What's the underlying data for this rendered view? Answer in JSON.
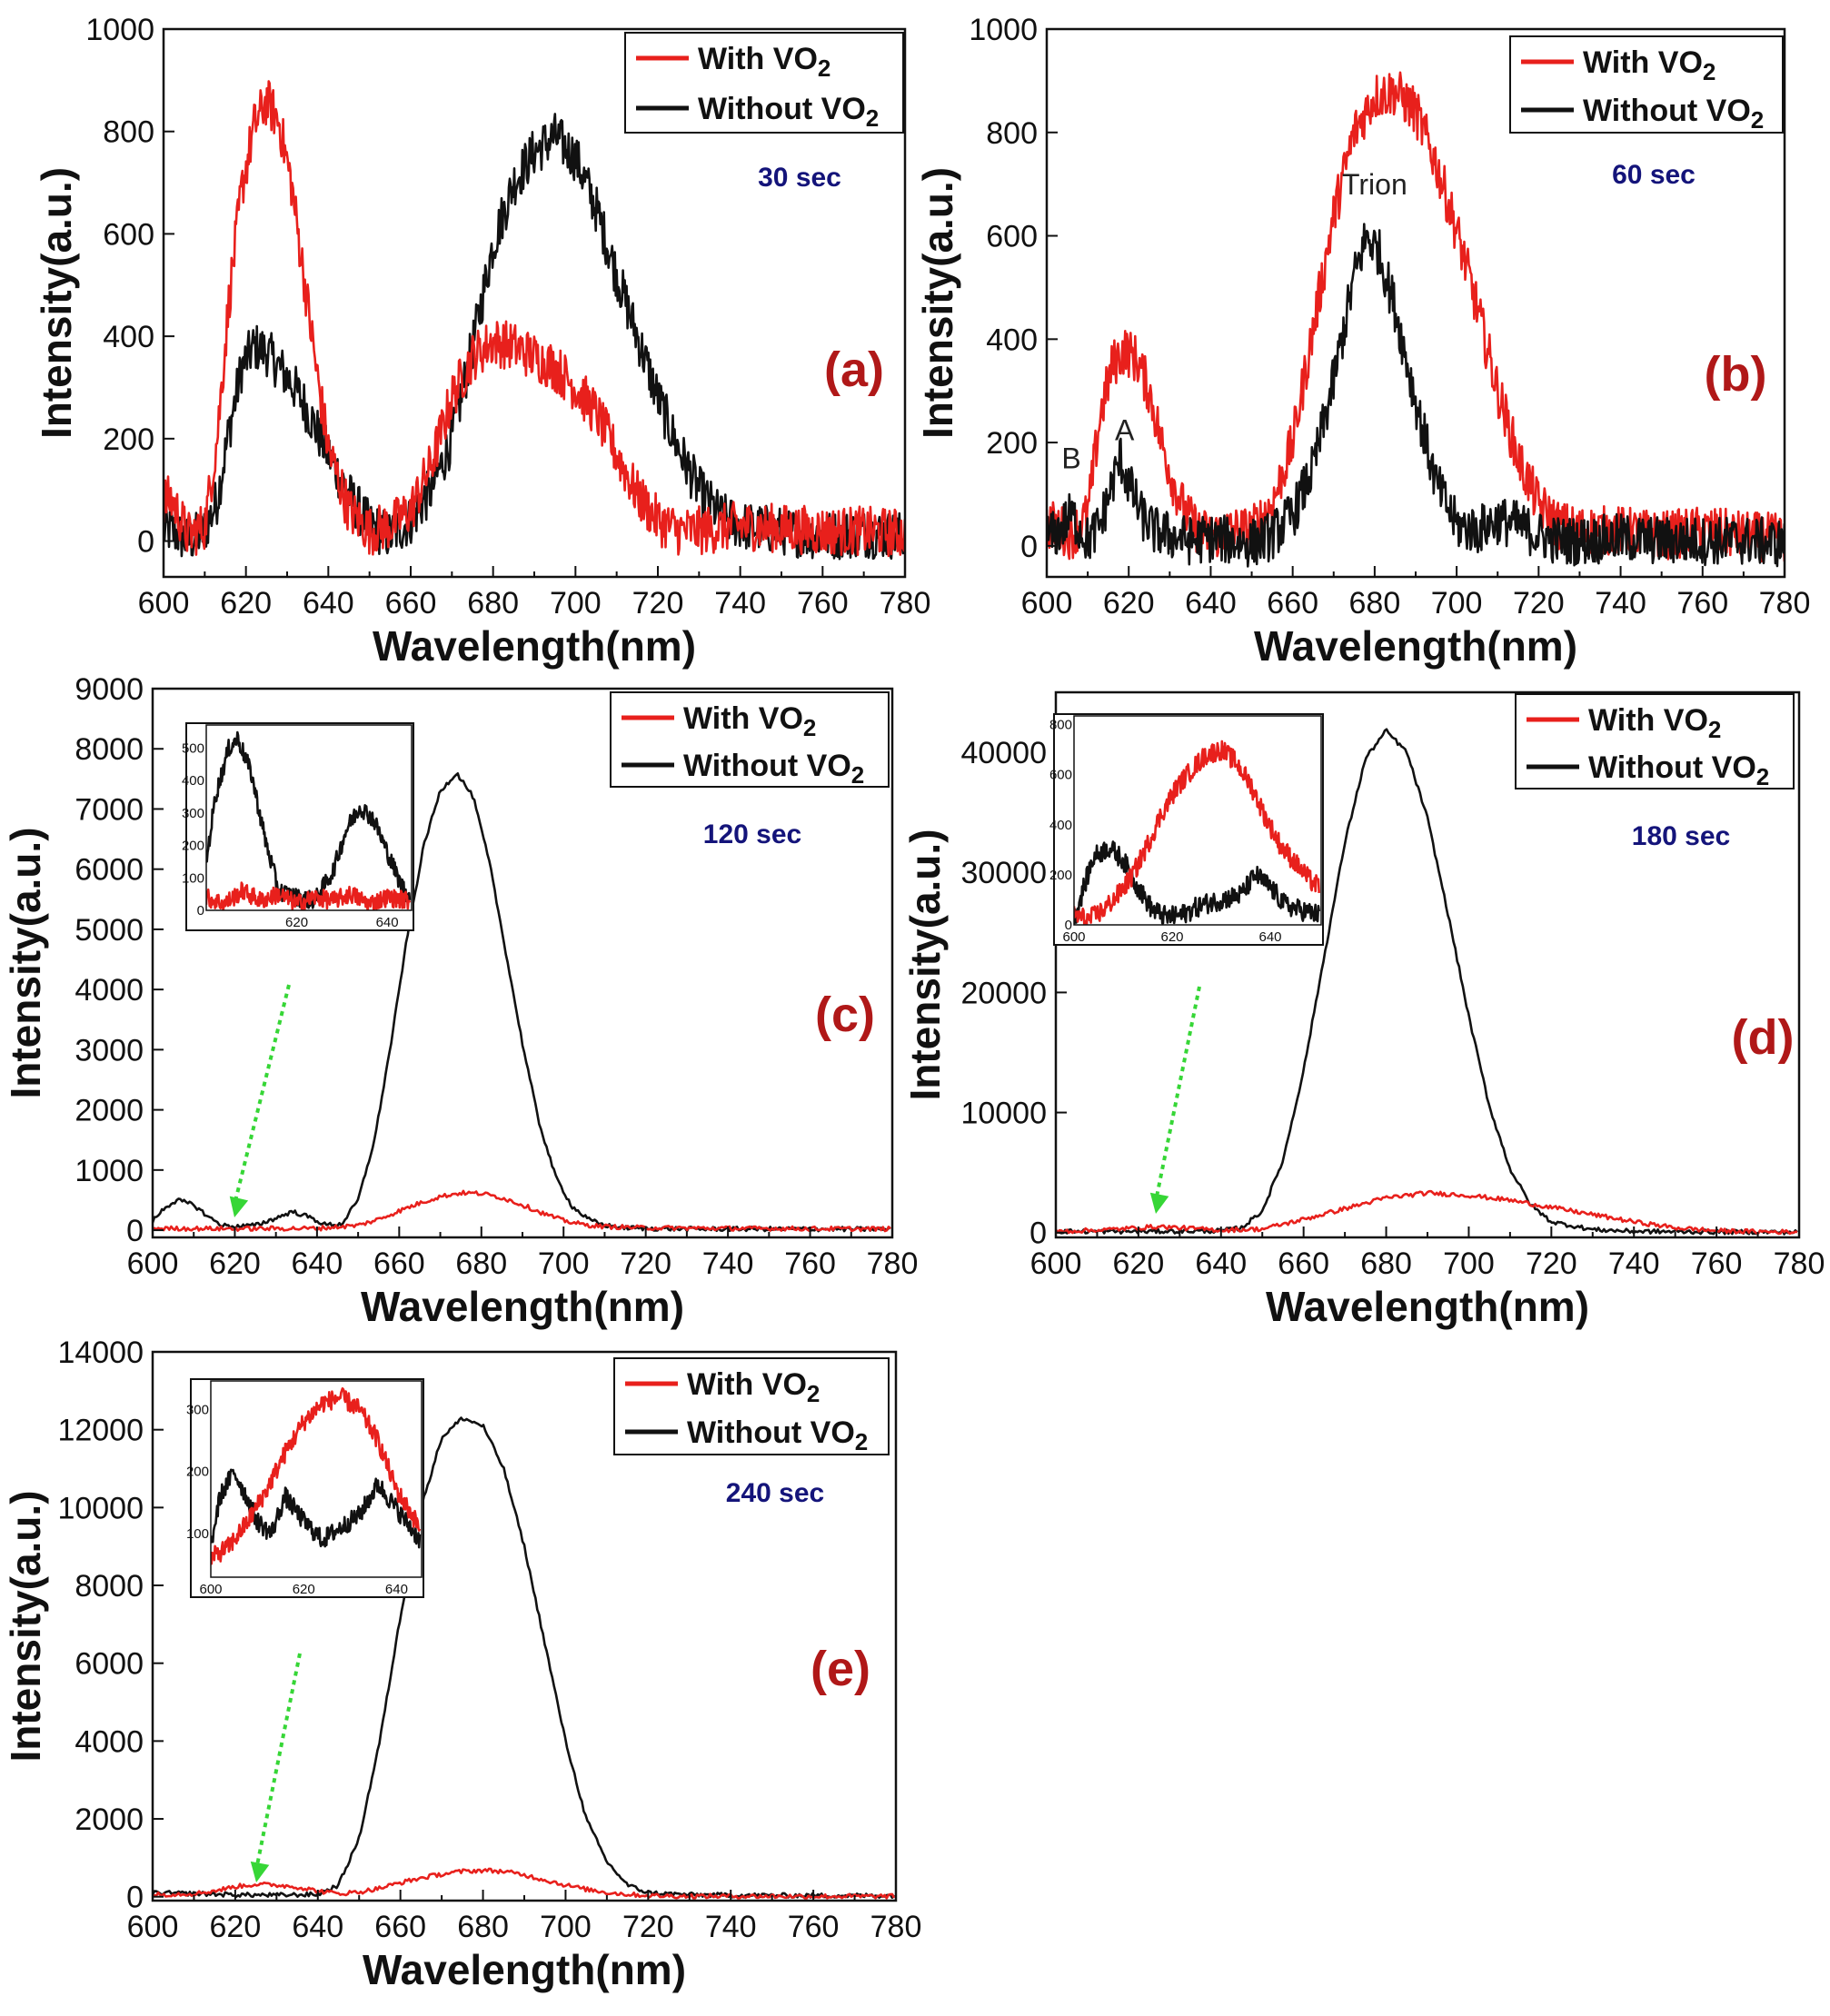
{
  "colors": {
    "with": "#e8201c",
    "without": "#111111",
    "arrow": "#36d636",
    "time": "#14147a",
    "panel_label": "#b01818"
  },
  "chart_data": [
    {
      "type": "line",
      "panel": "(a)",
      "time_label": "30 sec",
      "xlabel": "Wavelength(nm)",
      "ylabel": "Intensity(a.u.)",
      "xlim": [
        600,
        780
      ],
      "ylim": [
        -70,
        1000
      ],
      "xticks": [
        600,
        620,
        640,
        660,
        680,
        700,
        720,
        740,
        760,
        780
      ],
      "yticks": [
        0,
        200,
        400,
        600,
        800,
        1000
      ],
      "legend_placement": "top-right",
      "series": [
        {
          "name": "With VO2",
          "color": "#e8201c",
          "x": [
            602,
            606,
            610,
            613,
            616,
            619,
            622,
            625,
            628,
            631,
            634,
            637,
            640,
            645,
            650,
            655,
            660,
            665,
            670,
            675,
            680,
            685,
            690,
            695,
            700,
            705,
            710,
            715,
            720,
            725,
            730,
            740,
            750,
            760,
            770,
            780
          ],
          "y": [
            80,
            10,
            30,
            200,
            480,
            690,
            810,
            860,
            820,
            700,
            520,
            340,
            180,
            60,
            20,
            30,
            60,
            150,
            280,
            360,
            390,
            380,
            360,
            340,
            300,
            250,
            170,
            90,
            40,
            20,
            20,
            30,
            25,
            20,
            20,
            15
          ]
        },
        {
          "name": "Without VO2",
          "color": "#111111",
          "x": [
            602,
            606,
            610,
            613,
            616,
            619,
            622,
            625,
            628,
            631,
            634,
            637,
            640,
            645,
            650,
            655,
            660,
            665,
            670,
            675,
            680,
            685,
            690,
            695,
            700,
            705,
            710,
            715,
            720,
            725,
            730,
            735,
            740,
            750,
            760,
            770,
            780
          ],
          "y": [
            20,
            0,
            20,
            80,
            220,
            340,
            380,
            370,
            340,
            310,
            270,
            220,
            170,
            90,
            30,
            10,
            40,
            100,
            200,
            380,
            580,
            700,
            760,
            790,
            750,
            650,
            520,
            400,
            280,
            180,
            100,
            50,
            30,
            20,
            10,
            15,
            10
          ]
        }
      ]
    },
    {
      "type": "line",
      "panel": "(b)",
      "time_label": "60 sec",
      "xlabel": "Wavelength(nm)",
      "ylabel": "Intensity(a.u.)",
      "xlim": [
        600,
        780
      ],
      "ylim": [
        -60,
        1000
      ],
      "xticks": [
        600,
        620,
        640,
        660,
        680,
        700,
        720,
        740,
        760,
        780
      ],
      "yticks": [
        0,
        200,
        400,
        600,
        800,
        1000
      ],
      "legend_placement": "top-right",
      "annotations": [
        "B",
        "A",
        "Trion"
      ],
      "series": [
        {
          "name": "With VO2",
          "color": "#e8201c",
          "x": [
            602,
            606,
            610,
            613,
            616,
            619,
            622,
            625,
            628,
            631,
            634,
            637,
            640,
            645,
            650,
            655,
            660,
            665,
            670,
            675,
            680,
            685,
            690,
            695,
            700,
            705,
            710,
            715,
            720,
            725,
            730,
            740,
            750,
            760,
            770,
            780
          ],
          "y": [
            40,
            20,
            60,
            250,
            350,
            380,
            360,
            300,
            200,
            120,
            60,
            30,
            20,
            30,
            30,
            80,
            200,
            420,
            640,
            800,
            870,
            880,
            840,
            740,
            610,
            460,
            300,
            170,
            80,
            40,
            30,
            30,
            20,
            30,
            20,
            15
          ]
        },
        {
          "name": "Without VO2",
          "color": "#111111",
          "x": [
            602,
            606,
            610,
            613,
            616,
            618,
            620,
            623,
            626,
            630,
            635,
            640,
            645,
            650,
            655,
            660,
            665,
            670,
            675,
            678,
            681,
            685,
            690,
            695,
            700,
            705,
            710,
            715,
            720,
            725,
            730,
            740,
            750,
            760,
            770,
            780
          ],
          "y": [
            20,
            60,
            10,
            40,
            120,
            170,
            120,
            60,
            30,
            20,
            10,
            15,
            10,
            5,
            20,
            60,
            150,
            320,
            520,
            600,
            570,
            460,
            280,
            120,
            40,
            30,
            50,
            40,
            20,
            10,
            10,
            15,
            10,
            10,
            10,
            5
          ]
        }
      ]
    },
    {
      "type": "line",
      "panel": "(c)",
      "time_label": "120 sec",
      "xlabel": "Wavelength(nm)",
      "ylabel": "Intensity(a.u.)",
      "xlim": [
        600,
        780
      ],
      "ylim": [
        -120,
        9000
      ],
      "xticks": [
        600,
        620,
        640,
        660,
        680,
        700,
        720,
        740,
        760,
        780
      ],
      "yticks": [
        0,
        1000,
        2000,
        3000,
        4000,
        5000,
        6000,
        7000,
        8000,
        9000
      ],
      "legend_placement": "top-right",
      "series": [
        {
          "name": "With VO2",
          "color": "#e8201c",
          "x": [
            600,
            620,
            640,
            650,
            655,
            660,
            665,
            670,
            675,
            680,
            685,
            690,
            695,
            700,
            705,
            710,
            720,
            740,
            760,
            780
          ],
          "y": [
            30,
            25,
            30,
            80,
            180,
            320,
            450,
            560,
            620,
            610,
            540,
            420,
            280,
            160,
            90,
            60,
            40,
            30,
            25,
            20
          ]
        },
        {
          "name": "Without VO2",
          "color": "#111111",
          "x": [
            600,
            603,
            606,
            610,
            614,
            617,
            620,
            625,
            630,
            634,
            638,
            642,
            646,
            650,
            654,
            658,
            662,
            666,
            670,
            674,
            678,
            682,
            686,
            690,
            694,
            698,
            702,
            706,
            710,
            715,
            720,
            730,
            740,
            760,
            780
          ],
          "y": [
            150,
            380,
            500,
            420,
            200,
            80,
            60,
            80,
            200,
            310,
            220,
            90,
            100,
            500,
            1500,
            3100,
            4900,
            6400,
            7300,
            7600,
            7200,
            6100,
            4600,
            3100,
            1800,
            900,
            400,
            180,
            80,
            40,
            30,
            20,
            20,
            20,
            15
          ]
        }
      ],
      "inset": {
        "xticks": [
          620,
          640
        ],
        "yticks": [
          0,
          100,
          200,
          300,
          400,
          500
        ],
        "xlim": [
          600,
          645
        ],
        "ylim": [
          0,
          560
        ],
        "series": [
          {
            "name": "With VO2",
            "color": "#e8201c",
            "x": [
              600,
              604,
              608,
              612,
              616,
              620,
              624,
              628,
              632,
              636,
              640,
              645
            ],
            "y": [
              40,
              20,
              60,
              30,
              50,
              20,
              40,
              30,
              50,
              20,
              40,
              30
            ]
          },
          {
            "name": "Without VO2",
            "color": "#111111",
            "x": [
              600,
              602,
              605,
              607,
              610,
              613,
              616,
              620,
              624,
              628,
              631,
              634,
              637,
              640,
              643,
              645
            ],
            "y": [
              150,
              350,
              500,
              530,
              420,
              220,
              60,
              40,
              30,
              120,
              250,
              320,
              280,
              180,
              80,
              40
            ]
          }
        ]
      }
    },
    {
      "type": "line",
      "panel": "(d)",
      "time_label": "180 sec",
      "xlabel": "Wavelength(nm)",
      "ylabel": "Intensity(a.u.)",
      "xlim": [
        600,
        780
      ],
      "ylim": [
        -400,
        45000
      ],
      "xticks": [
        600,
        620,
        640,
        660,
        680,
        700,
        720,
        740,
        760,
        780
      ],
      "yticks": [
        0,
        10000,
        20000,
        30000,
        40000
      ],
      "legend_placement": "top-right",
      "series": [
        {
          "name": "With VO2",
          "color": "#e8201c",
          "x": [
            600,
            610,
            620,
            625,
            630,
            640,
            650,
            660,
            670,
            680,
            690,
            700,
            710,
            720,
            730,
            740,
            750,
            760,
            770,
            780
          ],
          "y": [
            100,
            200,
            400,
            500,
            400,
            200,
            300,
            1100,
            2000,
            2900,
            3300,
            3100,
            2700,
            2100,
            1500,
            900,
            400,
            150,
            80,
            50
          ]
        },
        {
          "name": "Without VO2",
          "color": "#111111",
          "x": [
            600,
            620,
            640,
            645,
            650,
            655,
            660,
            665,
            670,
            675,
            680,
            685,
            690,
            695,
            700,
            705,
            710,
            715,
            720,
            730,
            740,
            760,
            780
          ],
          "y": [
            100,
            100,
            150,
            400,
            1800,
            6000,
            13500,
            23000,
            32500,
            39500,
            41800,
            40000,
            34500,
            26500,
            18000,
            10500,
            5300,
            2300,
            900,
            250,
            100,
            60,
            50
          ]
        }
      ],
      "inset": {
        "xticks": [
          600,
          620,
          640
        ],
        "yticks": [
          0,
          200,
          400,
          600,
          800
        ],
        "xlim": [
          600,
          650
        ],
        "ylim": [
          0,
          820
        ],
        "series": [
          {
            "name": "With VO2",
            "color": "#e8201c",
            "x": [
              600,
              603,
              606,
              609,
              612,
              615,
              618,
              621,
              624,
              627,
              630,
              633,
              636,
              639,
              642,
              645,
              648,
              650
            ],
            "y": [
              40,
              20,
              60,
              120,
              200,
              320,
              450,
              550,
              620,
              680,
              700,
              650,
              560,
              430,
              320,
              250,
              180,
              150
            ]
          },
          {
            "name": "Without VO2",
            "color": "#111111",
            "x": [
              600,
              602,
              604,
              607,
              610,
              613,
              616,
              619,
              622,
              626,
              630,
              634,
              637,
              640,
              643,
              646,
              650
            ],
            "y": [
              20,
              150,
              270,
              310,
              260,
              150,
              60,
              30,
              40,
              80,
              100,
              120,
              200,
              150,
              80,
              60,
              40
            ]
          }
        ]
      }
    },
    {
      "type": "line",
      "panel": "(e)",
      "time_label": "240 sec",
      "xlabel": "Wavelength(nm)",
      "ylabel": "Intensity(a.u.)",
      "xlim": [
        600,
        780
      ],
      "ylim": [
        -100,
        14000
      ],
      "xticks": [
        600,
        620,
        640,
        660,
        680,
        700,
        720,
        740,
        760,
        780
      ],
      "yticks": [
        0,
        2000,
        4000,
        6000,
        8000,
        10000,
        12000,
        14000
      ],
      "legend_placement": "top-right",
      "series": [
        {
          "name": "With VO2",
          "color": "#e8201c",
          "x": [
            600,
            610,
            615,
            620,
            625,
            630,
            635,
            640,
            645,
            650,
            655,
            660,
            665,
            670,
            675,
            680,
            685,
            690,
            695,
            700,
            705,
            710,
            715,
            720,
            725,
            730,
            740,
            760,
            780
          ],
          "y": [
            50,
            80,
            150,
            260,
            320,
            300,
            250,
            150,
            80,
            120,
            220,
            360,
            480,
            580,
            650,
            680,
            650,
            560,
            430,
            300,
            190,
            110,
            60,
            30,
            20,
            15,
            15,
            10,
            10
          ]
        },
        {
          "name": "Without VO2",
          "color": "#111111",
          "x": [
            600,
            610,
            620,
            630,
            640,
            645,
            650,
            655,
            660,
            665,
            670,
            675,
            680,
            685,
            690,
            695,
            700,
            705,
            710,
            715,
            720,
            730,
            740,
            760,
            780
          ],
          "y": [
            100,
            80,
            50,
            40,
            60,
            300,
            1500,
            4000,
            7200,
            10000,
            11800,
            12300,
            12100,
            11000,
            9000,
            6500,
            4000,
            2000,
            900,
            300,
            100,
            50,
            40,
            30,
            30
          ]
        }
      ],
      "inset": {
        "xticks": [
          600,
          620,
          640
        ],
        "yticks": [
          100,
          200,
          300
        ],
        "xlim": [
          600,
          645
        ],
        "ylim": [
          30,
          340
        ],
        "series": [
          {
            "name": "With VO2",
            "color": "#e8201c",
            "x": [
              600,
              604,
              608,
              612,
              616,
              620,
              624,
              628,
              632,
              636,
              640,
              645
            ],
            "y": [
              60,
              80,
              120,
              170,
              230,
              280,
              310,
              320,
              300,
              250,
              170,
              110
            ]
          },
          {
            "name": "Without VO2",
            "color": "#111111",
            "x": [
              600,
              602,
              605,
              607,
              610,
              613,
              616,
              620,
              624,
              628,
              632,
              636,
              640,
              645
            ],
            "y": [
              80,
              160,
              200,
              170,
              120,
              100,
              160,
              120,
              90,
              110,
              130,
              180,
              140,
              90
            ]
          }
        ]
      }
    }
  ]
}
